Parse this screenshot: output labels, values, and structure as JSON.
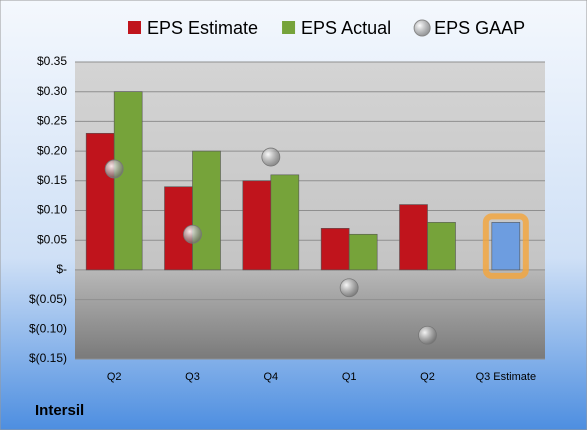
{
  "chart_data": {
    "type": "bar",
    "title": "Intersil",
    "categories": [
      "Q2",
      "Q3",
      "Q4",
      "Q1",
      "Q2",
      "Q3 Estimate"
    ],
    "series": [
      {
        "name": "EPS Estimate",
        "color": "#c0141c",
        "values": [
          0.23,
          0.14,
          0.15,
          0.07,
          0.11,
          null
        ]
      },
      {
        "name": "EPS Actual",
        "color": "#76a33a",
        "values": [
          0.3,
          0.2,
          0.16,
          0.06,
          0.08,
          null
        ]
      },
      {
        "name": "EPS GAAP",
        "color": "#a0a0a0",
        "marker": "circle",
        "values": [
          0.17,
          0.06,
          0.19,
          -0.03,
          -0.11,
          null
        ]
      }
    ],
    "forecast_values": [
      null,
      null,
      null,
      null,
      null,
      0.08
    ],
    "forecast_color": "#6d9de0",
    "ylim": [
      -0.15,
      0.35
    ],
    "yticks": [
      {
        "value": -0.15,
        "label": "$(0.15)"
      },
      {
        "value": -0.1,
        "label": "$(0.10)"
      },
      {
        "value": -0.05,
        "label": "$(0.05)"
      },
      {
        "value": 0,
        "label": "$-"
      },
      {
        "value": 0.05,
        "label": "$0.05"
      },
      {
        "value": 0.1,
        "label": "$0.10"
      },
      {
        "value": 0.15,
        "label": "$0.15"
      },
      {
        "value": 0.2,
        "label": "$0.20"
      },
      {
        "value": 0.25,
        "label": "$0.25"
      },
      {
        "value": 0.3,
        "label": "$0.30"
      },
      {
        "value": 0.35,
        "label": "$0.35"
      }
    ],
    "grid": true,
    "legend": "top"
  }
}
